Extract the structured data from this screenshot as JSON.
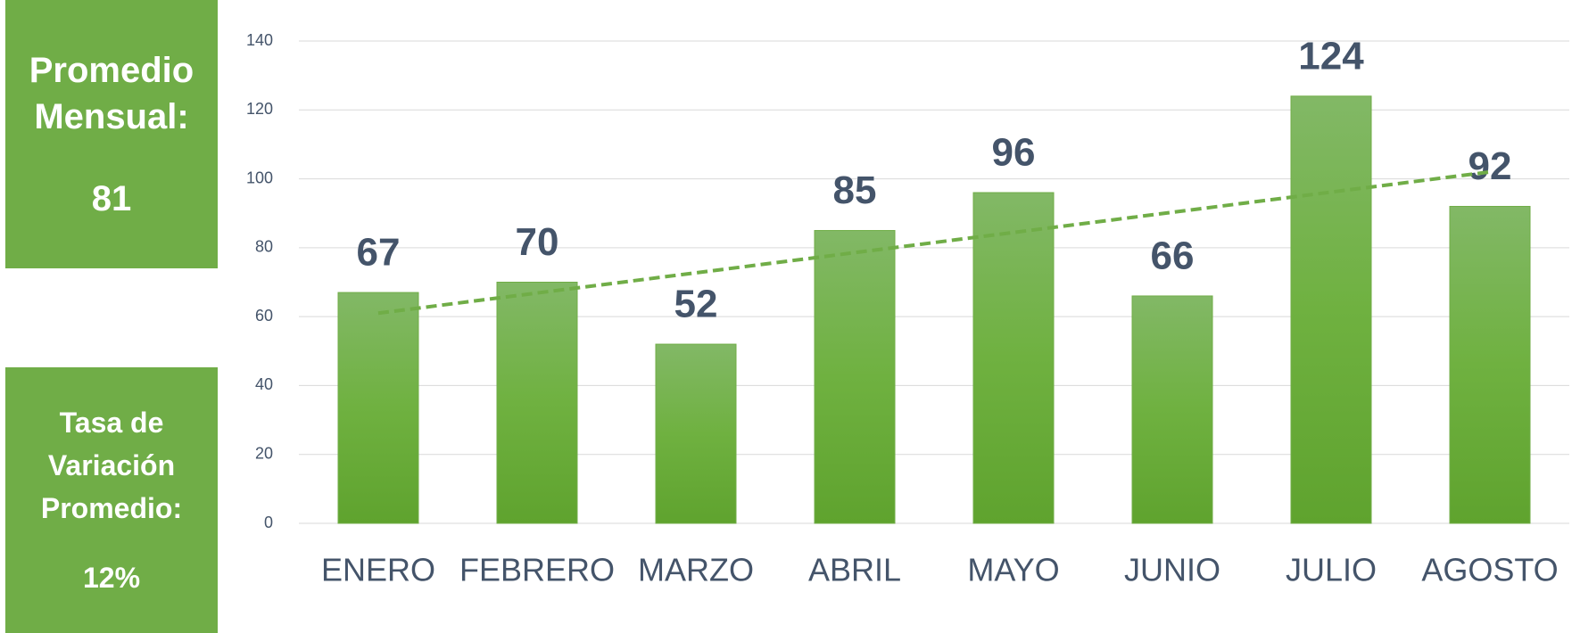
{
  "chart_data": {
    "type": "bar",
    "categories": [
      "ENERO",
      "FEBRERO",
      "MARZO",
      "ABRIL",
      "MAYO",
      "JUNIO",
      "JULIO",
      "AGOSTO"
    ],
    "values": [
      67,
      70,
      52,
      85,
      96,
      66,
      124,
      92
    ],
    "color": "#70ad47",
    "ylim": [
      0,
      140
    ],
    "yticks": [
      0,
      20,
      40,
      60,
      80,
      100,
      120,
      140
    ],
    "grid": true,
    "trendline": {
      "start": 61,
      "end": 102,
      "color": "#70ad47"
    }
  },
  "kpis": [
    {
      "label": "Promedio Mensual:",
      "value": "81"
    },
    {
      "label": "Tasa de Variación Promedio:",
      "value": "12%"
    }
  ]
}
